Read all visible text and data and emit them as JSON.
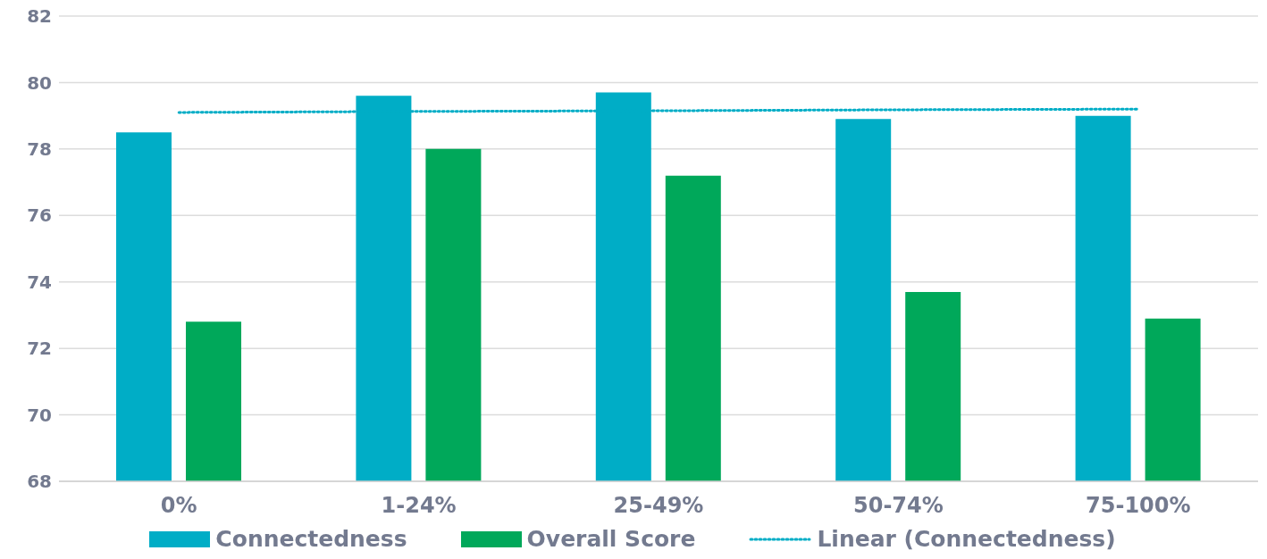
{
  "chart_data": {
    "type": "bar",
    "categories": [
      "0%",
      "1-24%",
      "25-49%",
      "50-74%",
      "75-100%"
    ],
    "series": [
      {
        "name": "Connectedness",
        "color": "#00adc6",
        "values": [
          78.5,
          79.6,
          79.7,
          78.9,
          79.0
        ]
      },
      {
        "name": "Overall Score",
        "color": "#00a85a",
        "values": [
          72.8,
          78.0,
          77.2,
          73.7,
          72.9
        ]
      },
      {
        "name": "Linear (Connectedness)",
        "type": "line",
        "color": "#00adc6",
        "line_style": "dotted",
        "marker": "none",
        "values": [
          79.1,
          79.13,
          79.15,
          79.18,
          79.2
        ]
      }
    ],
    "ylim": [
      68,
      82
    ],
    "yticks": [
      68,
      70,
      72,
      74,
      76,
      78,
      80,
      82
    ],
    "grid": "y",
    "legend": "bottom"
  }
}
